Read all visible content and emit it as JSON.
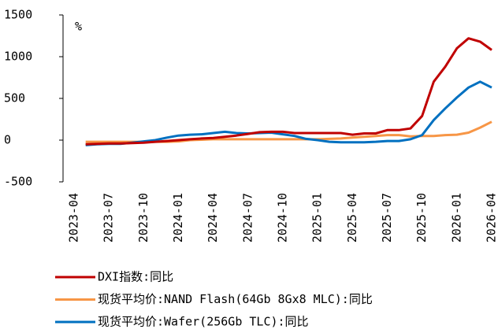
{
  "chart_data": {
    "type": "line",
    "annotation": "%",
    "categories": [
      "2023-04",
      null,
      null,
      "2023-07",
      null,
      null,
      "2023-10",
      null,
      null,
      "2024-01",
      null,
      null,
      "2024-04",
      null,
      null,
      "2024-07",
      null,
      null,
      "2024-10",
      null,
      null,
      "2025-01",
      null,
      null,
      "2025-04",
      null,
      null,
      "2025-07",
      null,
      null,
      "2025-10",
      null,
      null,
      "2026-01",
      null,
      null,
      "2026-04"
    ],
    "series": [
      {
        "name": "DXI指数:同比",
        "color": "#c00000",
        "values": [
          null,
          -50,
          -45,
          -40,
          -40,
          -35,
          -30,
          -20,
          -10,
          0,
          10,
          20,
          25,
          40,
          55,
          75,
          95,
          100,
          100,
          85,
          85,
          85,
          85,
          85,
          65,
          80,
          80,
          120,
          120,
          140,
          290,
          700,
          880,
          1100,
          1220,
          1180,
          1080
        ]
      },
      {
        "name": "现货平均价:NAND Flash(64Gb 8Gx8 MLC):同比",
        "color": "#f79646",
        "values": [
          null,
          -20,
          -20,
          -20,
          -20,
          -20,
          -20,
          -20,
          -20,
          -15,
          0,
          5,
          10,
          10,
          10,
          10,
          10,
          10,
          10,
          10,
          10,
          10,
          15,
          20,
          30,
          40,
          50,
          60,
          60,
          45,
          50,
          50,
          60,
          65,
          90,
          150,
          220
        ]
      },
      {
        "name": "现货平均价:Wafer(256Gb TLC):同比",
        "color": "#0070c0",
        "values": [
          null,
          -60,
          -50,
          -45,
          -45,
          -30,
          -15,
          0,
          30,
          55,
          65,
          70,
          85,
          100,
          85,
          80,
          85,
          90,
          70,
          50,
          15,
          0,
          -20,
          -25,
          -25,
          -25,
          -20,
          -10,
          -10,
          10,
          60,
          240,
          380,
          510,
          630,
          700,
          630
        ]
      }
    ],
    "ylim": [
      -500,
      1500
    ],
    "yticks": [
      -500,
      0,
      500,
      1000,
      1500
    ]
  }
}
